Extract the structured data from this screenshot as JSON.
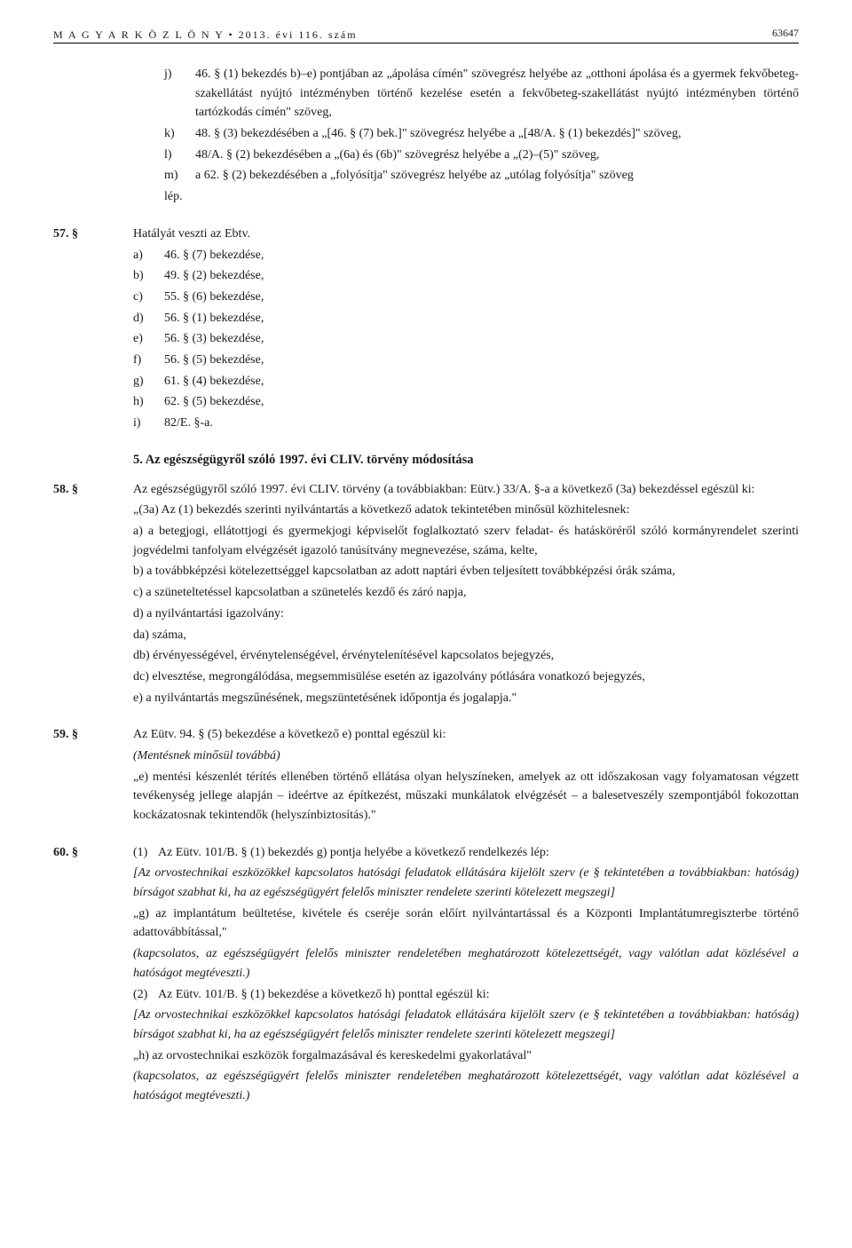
{
  "header": {
    "left": "M A G Y A R   K Ö Z L Ö N Y  •  2013. évi 116. szám",
    "page": "63647"
  },
  "block_j_m": {
    "items": [
      {
        "letter": "j)",
        "text": "46. § (1) bekezdés b)–e) pontjában az „ápolása címén\" szövegrész helyébe az „otthoni ápolása és a gyermek fekvőbeteg-szakellátást nyújtó intézményben történő kezelése esetén a fekvőbeteg-szakellátást nyújtó intézményben történő tartózkodás címén\" szöveg,"
      },
      {
        "letter": "k)",
        "text": "48. § (3) bekezdésében a „[46. § (7) bek.]\" szövegrész helyébe a „[48/A. § (1) bekezdés]\" szöveg,"
      },
      {
        "letter": "l)",
        "text": "48/A. § (2) bekezdésében a „(6a) és (6b)\" szövegrész helyébe a „(2)–(5)\" szöveg,"
      },
      {
        "letter": "m)",
        "text": "a 62. § (2) bekezdésében a „folyósítja\" szövegrész helyébe az „utólag folyósítja\" szöveg"
      },
      {
        "letter": "lép.",
        "text": ""
      }
    ]
  },
  "section57": {
    "marker": "57. §",
    "lead": "Hatályát veszti az Ebtv.",
    "items": [
      {
        "letter": "a)",
        "text": "46. § (7) bekezdése,"
      },
      {
        "letter": "b)",
        "text": "49. § (2) bekezdése,"
      },
      {
        "letter": "c)",
        "text": "55. § (6) bekezdése,"
      },
      {
        "letter": "d)",
        "text": "56. § (1) bekezdése,"
      },
      {
        "letter": "e)",
        "text": "56. § (3) bekezdése,"
      },
      {
        "letter": "f)",
        "text": "56. § (5) bekezdése,"
      },
      {
        "letter": "g)",
        "text": "61. § (4) bekezdése,"
      },
      {
        "letter": "h)",
        "text": "62. § (5) bekezdése,"
      },
      {
        "letter": "i)",
        "text": "82/E. §-a."
      }
    ]
  },
  "subheading5": "5. Az egészségügyről szóló 1997. évi CLIV. törvény módosítása",
  "section58": {
    "marker": "58. §",
    "lead": "Az egészségügyről szóló 1997. évi CLIV. törvény (a továbbiakban: Eütv.) 33/A. §-a a következő (3a) bekezdéssel egészül ki:",
    "paras": [
      "„(3a) Az (1) bekezdés szerinti nyilvántartás a következő adatok tekintetében minősül közhitelesnek:",
      "a) a betegjogi, ellátottjogi és gyermekjogi képviselőt foglalkoztató szerv feladat- és hatásköréről szóló kormányrendelet szerinti jogvédelmi tanfolyam elvégzését igazoló tanúsítvány megnevezése, száma, kelte,",
      "b) a továbbképzési kötelezettséggel kapcsolatban az adott naptári évben teljesített továbbképzési órák száma,",
      "c) a szüneteltetéssel kapcsolatban a szünetelés kezdő és záró napja,",
      "d) a nyilvántartási igazolvány:",
      "da) száma,",
      "db) érvényességével, érvénytelenségével, érvénytelenítésével kapcsolatos bejegyzés,",
      "dc) elvesztése, megrongálódása, megsemmisülése esetén az igazolvány pótlására vonatkozó bejegyzés,",
      "e) a nyilvántartás megszűnésének, megszüntetésének időpontja és jogalapja.\""
    ]
  },
  "section59": {
    "marker": "59. §",
    "lead": "Az Eütv. 94. § (5) bekezdése a következő e) ponttal egészül ki:",
    "italic": "(Mentésnek minősül továbbá)",
    "body": "„e) mentési készenlét térítés ellenében történő ellátása olyan helyszíneken, amelyek az ott időszakosan vagy folyamatosan végzett tevékenység jellege alapján – ideértve az építkezést, műszaki munkálatok elvégzését – a balesetveszély szempontjából fokozottan kockázatosnak tekintendők (helyszínbiztosítás).\""
  },
  "section60": {
    "marker": "60. §",
    "sub1": {
      "num": "(1)",
      "lead": "Az Eütv. 101/B. § (1) bekezdés g) pontja helyébe a következő rendelkezés lép:",
      "italic1": "[Az orvostechnikai eszközökkel kapcsolatos hatósági feladatok ellátására kijelölt szerv (e § tekintetében a továbbiakban: hatóság) bírságot szabhat ki, ha az egészségügyért felelős miniszter rendelete szerinti kötelezett megszegi]",
      "body": "„g) az implantátum beültetése, kivétele és cseréje során előírt nyilvántartással és a Központi Implantátumregiszterbe történő adattovábbítással,\"",
      "italic2": "(kapcsolatos, az egészségügyért felelős miniszter rendeletében meghatározott kötelezettségét, vagy valótlan adat közlésével a hatóságot megtéveszti.)"
    },
    "sub2": {
      "num": "(2)",
      "lead": "Az Eütv. 101/B. § (1) bekezdése a következő h) ponttal egészül ki:",
      "italic1": "[Az orvostechnikai eszközökkel kapcsolatos hatósági feladatok ellátására kijelölt szerv (e § tekintetében a továbbiakban: hatóság) bírságot szabhat ki, ha az egészségügyért felelős miniszter rendelete szerinti kötelezett megszegi]",
      "body": "„h) az orvostechnikai eszközök forgalmazásával és kereskedelmi gyakorlatával\"",
      "italic2": "(kapcsolatos, az egészségügyért felelős miniszter rendeletében meghatározott kötelezettségét, vagy valótlan adat közlésével a hatóságot megtéveszti.)"
    }
  }
}
